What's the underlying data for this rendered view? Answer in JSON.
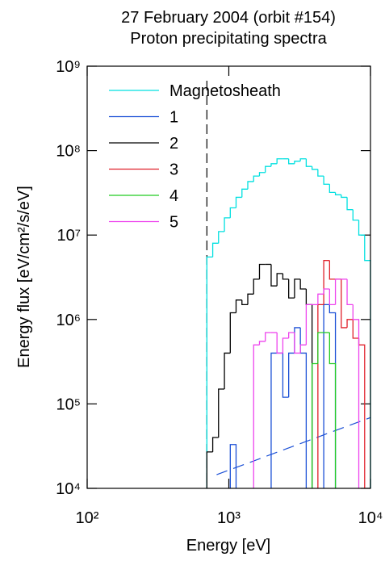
{
  "chart_data": {
    "type": "histogram",
    "title": [
      "27 February 2004 (orbit #154)",
      "Proton precipitating spectra"
    ],
    "x_label": "Energy [eV]",
    "y_label": "Energy flux [eV/cm²/s/eV]",
    "x_log": true,
    "y_log": true,
    "xlim": [
      100,
      10000
    ],
    "xticks": [
      {
        "value": 100,
        "label": "10²"
      },
      {
        "value": 1000,
        "label": "10³"
      },
      {
        "value": 10000,
        "label": "10⁴"
      }
    ],
    "ylim": [
      10000,
      1000000000
    ],
    "yticks": [
      {
        "value": 10000,
        "label": "10⁴"
      },
      {
        "value": 100000,
        "label": "10⁵"
      },
      {
        "value": 1000000,
        "label": "10⁶"
      },
      {
        "value": 10000000,
        "label": "10⁷"
      },
      {
        "value": 100000000,
        "label": "10⁸"
      },
      {
        "value": 1000000000,
        "label": "10⁹"
      }
    ],
    "bins": [
      700,
      770,
      846,
      931,
      1024,
      1125,
      1238,
      1361,
      1497,
      1646,
      1810,
      1990,
      2188,
      2406,
      2646,
      2910,
      3200,
      3518,
      3869,
      4254,
      4678,
      5144,
      5657,
      6220,
      6840,
      7522,
      8271,
      9095,
      10000
    ],
    "series": [
      {
        "name": "Magnetosheath",
        "color": "#00e0e0",
        "values": [
          5500000,
          8000000,
          11000000,
          16000000,
          21000000,
          28000000,
          35000000,
          43000000,
          50000000,
          55000000,
          65000000,
          70000000,
          80000000,
          80000000,
          70000000,
          75000000,
          80000000,
          65000000,
          60000000,
          50000000,
          40000000,
          32000000,
          30000000,
          28000000,
          20000000,
          15000000,
          10000000,
          5000000
        ]
      },
      {
        "name": "1",
        "color": "#1a4fd6",
        "values": [
          null,
          null,
          null,
          null,
          33000,
          null,
          null,
          null,
          null,
          null,
          null,
          400000,
          400000,
          120000,
          400000,
          800000,
          400000,
          null,
          null,
          null,
          1500000,
          1200000,
          null,
          null,
          null,
          null,
          null,
          null
        ]
      },
      {
        "name": "2",
        "color": "#000000",
        "values": [
          27000,
          40000,
          150000,
          400000,
          1200000,
          1700000,
          1500000,
          2000000,
          3000000,
          4500000,
          4500000,
          2500000,
          3500000,
          3000000,
          1800000,
          3000000,
          2300000,
          1500000,
          null,
          null,
          null,
          null,
          null,
          null,
          null,
          null,
          null,
          null
        ]
      },
      {
        "name": "3",
        "color": "#e0202a",
        "values": [
          null,
          null,
          null,
          null,
          null,
          null,
          null,
          null,
          null,
          null,
          null,
          null,
          null,
          null,
          null,
          null,
          null,
          null,
          null,
          1500000,
          5000000,
          3000000,
          3000000,
          800000,
          1000000,
          600000,
          500000,
          null
        ]
      },
      {
        "name": "4",
        "color": "#22cc22",
        "values": [
          null,
          null,
          null,
          null,
          null,
          null,
          null,
          null,
          null,
          null,
          null,
          null,
          null,
          null,
          null,
          null,
          null,
          null,
          300000,
          700000,
          700000,
          300000,
          null,
          null,
          null,
          null,
          null,
          null
        ]
      },
      {
        "name": "5",
        "color": "#ee44ee",
        "values": [
          null,
          null,
          null,
          null,
          null,
          null,
          null,
          null,
          500000,
          550000,
          700000,
          700000,
          400000,
          600000,
          700000,
          400000,
          500000,
          1500000,
          1500000,
          2000000,
          2300000,
          1500000,
          3000000,
          3000000,
          1500000,
          1000000,
          null,
          null
        ]
      }
    ],
    "threshold_energy": 700,
    "reference_line": {
      "x": [
        820,
        10000
      ],
      "y": [
        14500,
        69000
      ],
      "color": "#1a4fd6"
    }
  }
}
